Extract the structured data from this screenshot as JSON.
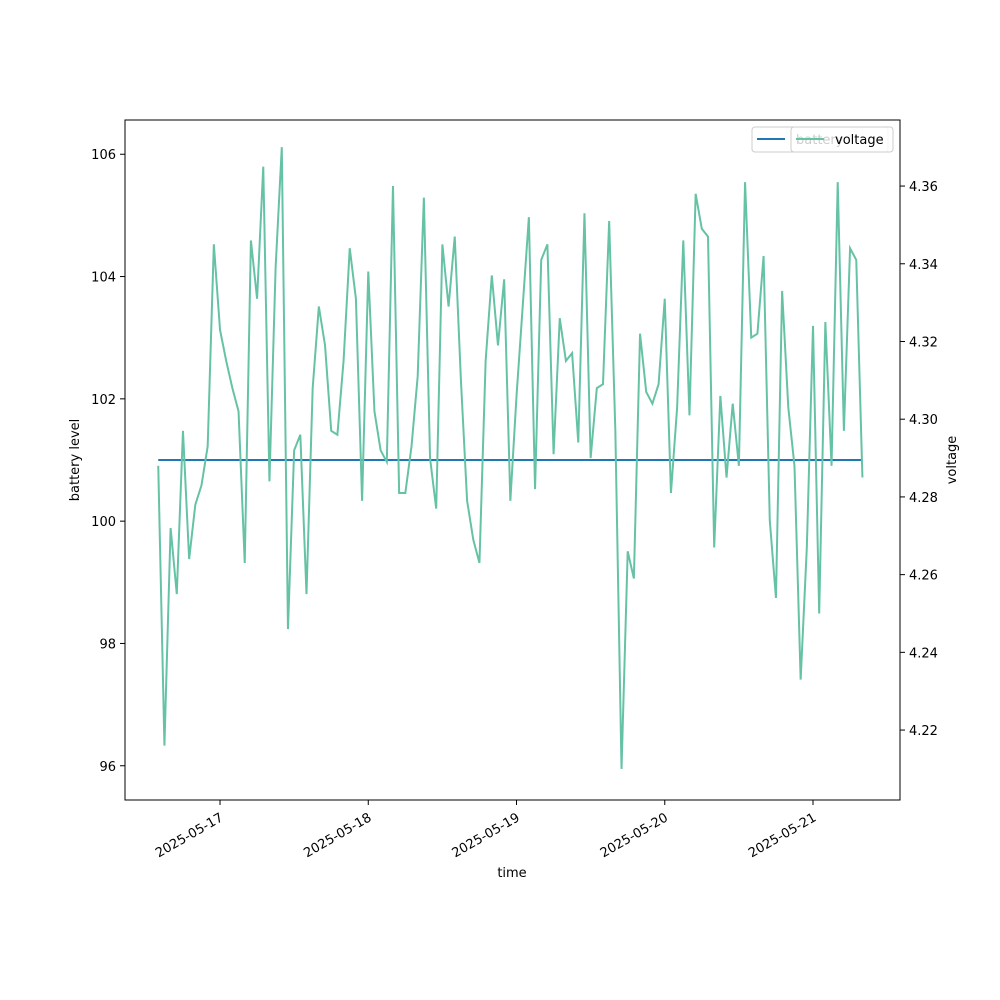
{
  "chart_data": {
    "type": "line",
    "xlabel": "time",
    "ylabel": "battery level",
    "y2label": "voltage",
    "x": [
      "2025-05-16T14:00",
      "2025-05-16T15:00",
      "2025-05-16T16:00",
      "2025-05-16T17:00",
      "2025-05-16T18:00",
      "2025-05-16T19:00",
      "2025-05-16T20:00",
      "2025-05-16T21:00",
      "2025-05-16T22:00",
      "2025-05-16T23:00",
      "2025-05-17T00:00",
      "2025-05-17T01:00",
      "2025-05-17T02:00",
      "2025-05-17T03:00",
      "2025-05-17T04:00",
      "2025-05-17T05:00",
      "2025-05-17T06:00",
      "2025-05-17T07:00",
      "2025-05-17T08:00",
      "2025-05-17T09:00",
      "2025-05-17T10:00",
      "2025-05-17T11:00",
      "2025-05-17T12:00",
      "2025-05-17T13:00",
      "2025-05-17T14:00",
      "2025-05-17T15:00",
      "2025-05-17T16:00",
      "2025-05-17T17:00",
      "2025-05-17T18:00",
      "2025-05-17T19:00",
      "2025-05-17T20:00",
      "2025-05-17T21:00",
      "2025-05-17T22:00",
      "2025-05-17T23:00",
      "2025-05-18T00:00",
      "2025-05-18T01:00",
      "2025-05-18T02:00",
      "2025-05-18T03:00",
      "2025-05-18T04:00",
      "2025-05-18T05:00",
      "2025-05-18T06:00",
      "2025-05-18T07:00",
      "2025-05-18T08:00",
      "2025-05-18T09:00",
      "2025-05-18T10:00",
      "2025-05-18T11:00",
      "2025-05-18T12:00",
      "2025-05-18T13:00",
      "2025-05-18T14:00",
      "2025-05-18T15:00",
      "2025-05-18T16:00",
      "2025-05-18T17:00",
      "2025-05-18T18:00",
      "2025-05-18T19:00",
      "2025-05-18T20:00",
      "2025-05-18T21:00",
      "2025-05-18T22:00",
      "2025-05-18T23:00",
      "2025-05-19T00:00",
      "2025-05-19T01:00",
      "2025-05-19T02:00",
      "2025-05-19T03:00",
      "2025-05-19T04:00",
      "2025-05-19T05:00",
      "2025-05-19T06:00",
      "2025-05-19T07:00",
      "2025-05-19T08:00",
      "2025-05-19T09:00",
      "2025-05-19T10:00",
      "2025-05-19T11:00",
      "2025-05-19T12:00",
      "2025-05-19T13:00",
      "2025-05-19T14:00",
      "2025-05-19T15:00",
      "2025-05-19T16:00",
      "2025-05-19T17:00",
      "2025-05-19T18:00",
      "2025-05-19T19:00",
      "2025-05-19T20:00",
      "2025-05-19T21:00",
      "2025-05-19T22:00",
      "2025-05-19T23:00",
      "2025-05-20T00:00",
      "2025-05-20T01:00",
      "2025-05-20T02:00",
      "2025-05-20T03:00",
      "2025-05-20T04:00",
      "2025-05-20T05:00",
      "2025-05-20T06:00",
      "2025-05-20T07:00",
      "2025-05-20T08:00",
      "2025-05-20T09:00",
      "2025-05-20T10:00",
      "2025-05-20T11:00",
      "2025-05-20T12:00",
      "2025-05-20T13:00",
      "2025-05-20T14:00",
      "2025-05-20T15:00",
      "2025-05-20T16:00",
      "2025-05-20T17:00",
      "2025-05-20T18:00",
      "2025-05-20T19:00",
      "2025-05-20T20:00",
      "2025-05-20T21:00",
      "2025-05-20T22:00",
      "2025-05-20T23:00",
      "2025-05-21T00:00",
      "2025-05-21T01:00",
      "2025-05-21T02:00",
      "2025-05-21T03:00",
      "2025-05-21T04:00",
      "2025-05-21T05:00",
      "2025-05-21T06:00",
      "2025-05-21T07:00",
      "2025-05-21T08:00"
    ],
    "series": [
      {
        "name": "battery",
        "color": "#1f77b4",
        "axis": "y",
        "values": [
          101,
          101,
          101,
          101,
          101,
          101,
          101,
          101,
          101,
          101,
          101,
          101,
          101,
          101,
          101,
          101,
          101,
          101,
          101,
          101,
          101,
          101,
          101,
          101,
          101,
          101,
          101,
          101,
          101,
          101,
          101,
          101,
          101,
          101,
          101,
          101,
          101,
          101,
          101,
          101,
          101,
          101,
          101,
          101,
          101,
          101,
          101,
          101,
          101,
          101,
          101,
          101,
          101,
          101,
          101,
          101,
          101,
          101,
          101,
          101,
          101,
          101,
          101,
          101,
          101,
          101,
          101,
          101,
          101,
          101,
          101,
          101,
          101,
          101,
          101,
          101,
          101,
          101,
          101,
          101,
          101,
          101,
          101,
          101,
          101,
          101,
          101,
          101,
          101,
          101,
          101,
          101,
          101,
          101,
          101,
          101,
          101,
          101,
          101,
          101,
          101,
          101,
          101,
          101,
          101,
          101,
          101,
          101,
          101,
          101,
          101,
          101,
          101,
          101,
          101
        ]
      },
      {
        "name": "voltage",
        "color": "#66c2a5",
        "axis": "y2",
        "values": [
          4.288,
          4.216,
          4.272,
          4.255,
          4.297,
          4.264,
          4.278,
          4.283,
          4.293,
          4.345,
          4.323,
          4.315,
          4.308,
          4.302,
          4.263,
          4.346,
          4.331,
          4.365,
          4.284,
          4.339,
          4.37,
          4.246,
          4.292,
          4.296,
          4.255,
          4.308,
          4.329,
          4.319,
          4.297,
          4.296,
          4.315,
          4.344,
          4.331,
          4.279,
          4.338,
          4.302,
          4.292,
          4.289,
          4.36,
          4.281,
          4.281,
          4.293,
          4.311,
          4.357,
          4.29,
          4.277,
          4.345,
          4.329,
          4.347,
          4.31,
          4.279,
          4.269,
          4.263,
          4.315,
          4.337,
          4.319,
          4.336,
          4.279,
          4.306,
          4.329,
          4.352,
          4.282,
          4.341,
          4.345,
          4.291,
          4.326,
          4.315,
          4.317,
          4.294,
          4.353,
          4.29,
          4.308,
          4.309,
          4.351,
          4.297,
          4.21,
          4.266,
          4.259,
          4.322,
          4.307,
          4.304,
          4.309,
          4.331,
          4.281,
          4.303,
          4.346,
          4.301,
          4.358,
          4.349,
          4.347,
          4.267,
          4.306,
          4.285,
          4.304,
          4.288,
          4.361,
          4.321,
          4.322,
          4.342,
          4.274,
          4.254,
          4.333,
          4.303,
          4.288,
          4.233,
          4.267,
          4.324,
          4.25,
          4.325,
          4.288,
          4.361,
          4.297,
          4.344,
          4.341,
          4.285
        ]
      }
    ],
    "xlim": [
      "2025-05-16T08:37",
      "2025-05-21T14:05"
    ],
    "xticks": [
      "2025-05-17",
      "2025-05-18",
      "2025-05-19",
      "2025-05-20",
      "2025-05-21"
    ],
    "ylim": [
      95.44,
      106.56
    ],
    "yticks": [
      96,
      98,
      100,
      102,
      104,
      106
    ],
    "y2lim": [
      4.202,
      4.377
    ],
    "y2ticks": [
      4.22,
      4.24,
      4.26,
      4.28,
      {
        "value": 4.3,
        "label": "4.30"
      },
      4.32,
      4.34,
      4.36
    ],
    "grid": false,
    "legend": "upper right"
  }
}
